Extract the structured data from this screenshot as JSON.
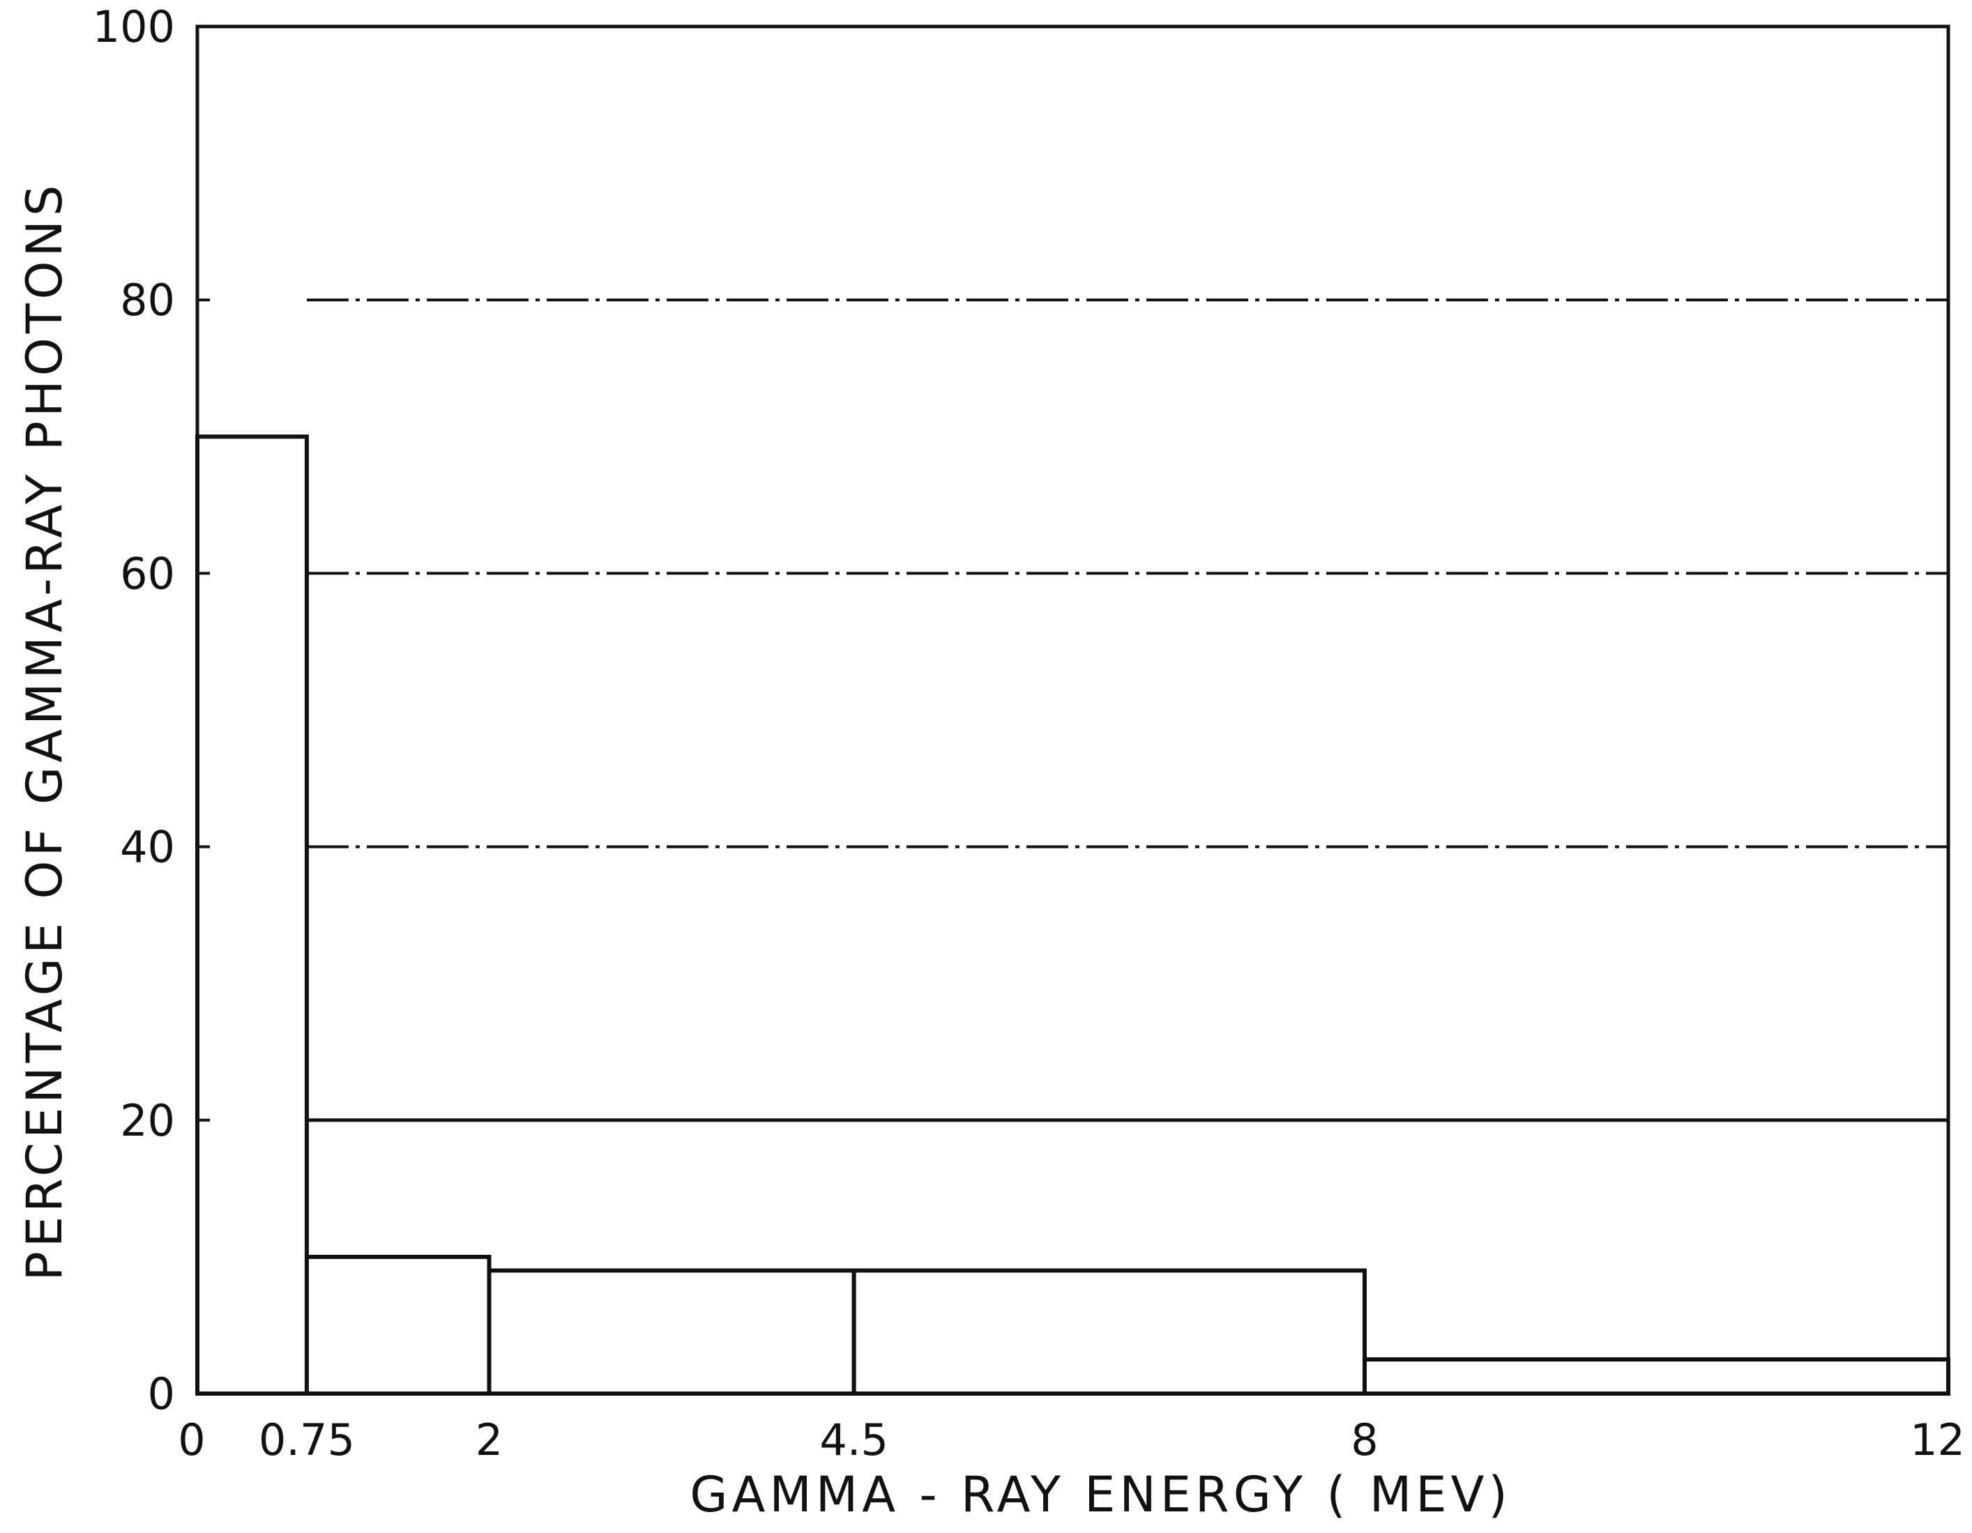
{
  "chart_data": {
    "type": "bar",
    "title": "",
    "xlabel": "GAMMA - RAY ENERGY ( MEV)",
    "ylabel": "PERCENTAGE OF GAMMA-RAY PHOTONS",
    "xlim": [
      0,
      12
    ],
    "ylim": [
      0,
      100
    ],
    "x_ticks": [
      {
        "value": 0,
        "label": "0"
      },
      {
        "value": 0.75,
        "label": "0.75"
      },
      {
        "value": 2,
        "label": "2"
      },
      {
        "value": 4.5,
        "label": "4.5"
      },
      {
        "value": 8,
        "label": "8"
      },
      {
        "value": 12,
        "label": "12"
      }
    ],
    "y_ticks": [
      {
        "value": 0,
        "label": "0"
      },
      {
        "value": 20,
        "label": "20"
      },
      {
        "value": 40,
        "label": "40"
      },
      {
        "value": 60,
        "label": "60"
      },
      {
        "value": 80,
        "label": "80"
      },
      {
        "value": 100,
        "label": "100"
      }
    ],
    "gridlines": [
      20,
      40,
      60,
      80
    ],
    "grid": true,
    "bins": [
      {
        "x0": 0,
        "x1": 0.75,
        "value": 70
      },
      {
        "x0": 0.75,
        "x1": 2,
        "value": 10
      },
      {
        "x0": 2,
        "x1": 4.5,
        "value": 9
      },
      {
        "x0": 4.5,
        "x1": 8,
        "value": 9
      },
      {
        "x0": 8,
        "x1": 12,
        "value": 2.5
      }
    ],
    "colors": {
      "line": "#111111",
      "background": "#ffffff"
    }
  }
}
